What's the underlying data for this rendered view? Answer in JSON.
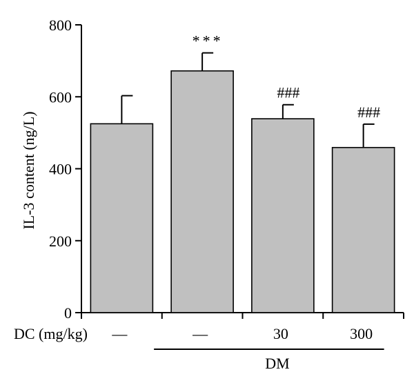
{
  "chart_data": {
    "type": "bar",
    "ylabel": "IL-3 content (ng/L)",
    "xlabel": "",
    "ylim": [
      0,
      800
    ],
    "yticks": [
      0,
      200,
      400,
      600,
      800
    ],
    "categories": [
      "—",
      "—",
      "30",
      "300"
    ],
    "values": [
      525,
      672,
      539,
      459
    ],
    "errors": [
      78,
      50,
      39,
      65
    ],
    "annotations": [
      "",
      "***",
      "###",
      "###"
    ],
    "bar_color": "#c0c0c0",
    "grid": false,
    "dose_row_label": "DC (mg/kg)",
    "group_label": "DM",
    "group_span": [
      1,
      3
    ]
  }
}
